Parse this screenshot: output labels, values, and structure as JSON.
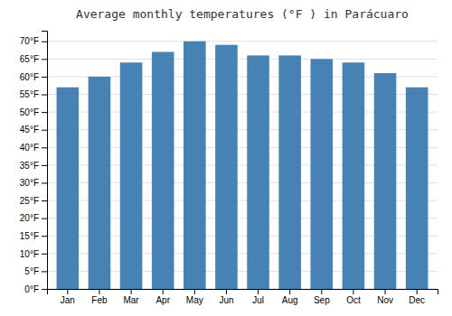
{
  "chart_data": {
    "type": "bar",
    "title": "Average monthly temperatures (°F ) in Parácuaro",
    "categories": [
      "Jan",
      "Feb",
      "Mar",
      "Apr",
      "May",
      "Jun",
      "Jul",
      "Aug",
      "Sep",
      "Oct",
      "Nov",
      "Dec"
    ],
    "values": [
      57,
      60,
      64,
      67,
      70,
      69,
      66,
      66,
      65,
      64,
      61,
      57
    ],
    "ylim": [
      0,
      73
    ],
    "yticks": [
      {
        "value": 0,
        "label": "0°F"
      },
      {
        "value": 5,
        "label": "5°F"
      },
      {
        "value": 10,
        "label": "10°F"
      },
      {
        "value": 15,
        "label": "15°F"
      },
      {
        "value": 20,
        "label": "20°F"
      },
      {
        "value": 25,
        "label": "25°F"
      },
      {
        "value": 30,
        "label": "30°F"
      },
      {
        "value": 35,
        "label": "35°F"
      },
      {
        "value": 40,
        "label": "40°F"
      },
      {
        "value": 45,
        "label": "45°F"
      },
      {
        "value": 50,
        "label": "50°F"
      },
      {
        "value": 55,
        "label": "55°F"
      },
      {
        "value": 60,
        "label": "60°F"
      },
      {
        "value": 65,
        "label": "65°F"
      },
      {
        "value": 70,
        "label": "70°F"
      }
    ],
    "grid": true
  }
}
